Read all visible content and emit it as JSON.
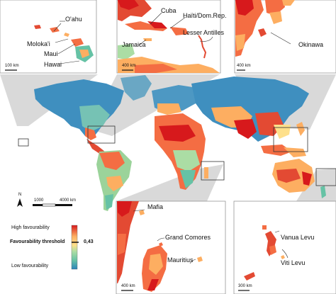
{
  "insets": {
    "hawaii": {
      "labels": [
        "O'ahu",
        "Moloka'i",
        "Maui",
        "Hawai"
      ],
      "scale": "100 km"
    },
    "caribbean": {
      "labels": [
        "Cuba",
        "Haïti/Dom.Rep.",
        "Jamaica",
        "Lesser Antilles"
      ],
      "scale": "400 km"
    },
    "japan": {
      "labels": [
        "Okinawa"
      ],
      "scale": "400 km"
    },
    "indian_ocean": {
      "labels": [
        "Mafia",
        "Grand Comores",
        "Mauritius"
      ],
      "scale": "400 km"
    },
    "pacific": {
      "labels": [
        "Vanua Levu",
        "Viti Levu"
      ],
      "scale": "300 km"
    }
  },
  "north_arrow": "N",
  "scale_bar": {
    "mid": "1000",
    "end": "4000 km"
  },
  "legend": {
    "high": "High favourability",
    "threshold_label": "Favourability threshold",
    "threshold_value": "0,43",
    "low": "Low favourability",
    "colors": [
      "#d7191c",
      "#f46d43",
      "#fdae61",
      "#fee08b",
      "#e6f598",
      "#abdda4",
      "#66c2a5",
      "#3288bd"
    ]
  }
}
